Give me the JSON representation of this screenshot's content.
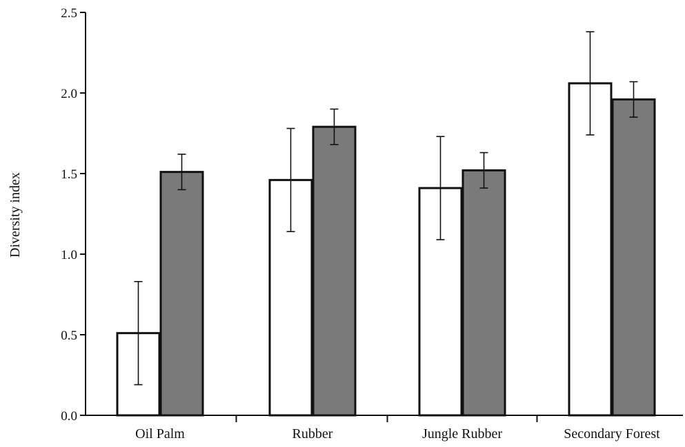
{
  "chart_data": {
    "type": "bar",
    "title": "",
    "xlabel": "",
    "ylabel": "Diversity index",
    "ylim": [
      0.0,
      2.5
    ],
    "yticks": [
      "0.0",
      "0.5",
      "1.0",
      "1.5",
      "2.0",
      "2.5"
    ],
    "categories": [
      "Oil Palm",
      "Rubber",
      "Jungle Rubber",
      "Secondary Forest"
    ],
    "grid": false,
    "legend": "none",
    "series": [
      {
        "color": "#ffffff",
        "values": [
          0.51,
          1.46,
          1.41,
          2.06
        ],
        "error": [
          0.32,
          0.32,
          0.32,
          0.32
        ]
      },
      {
        "color": "#7a7a7a",
        "values": [
          1.51,
          1.79,
          1.52,
          1.96
        ],
        "error": [
          0.11,
          0.11,
          0.11,
          0.11
        ]
      }
    ]
  }
}
